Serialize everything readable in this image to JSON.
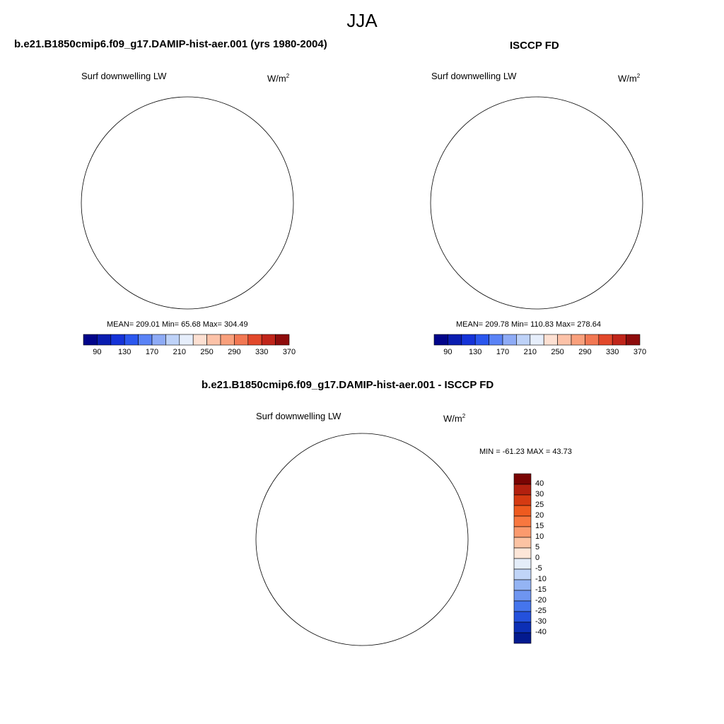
{
  "main_title": "JJA",
  "panels": {
    "model": {
      "title": "b.e21.B1850cmip6.f09_g17.DAMIP-hist-aer.001 (yrs 1980-2004)",
      "variable": "Surf downwelling LW",
      "units": "W/m",
      "units_sup": "2",
      "stats": "MEAN= 209.01  Min=  65.68  Max= 304.49"
    },
    "obs": {
      "title": "ISCCP FD",
      "variable": "Surf downwelling LW",
      "units": "W/m",
      "units_sup": "2",
      "stats": "MEAN= 209.78  Min= 110.83  Max= 278.64"
    },
    "diff": {
      "title": "b.e21.B1850cmip6.f09_g17.DAMIP-hist-aer.001 - ISCCP FD",
      "variable": "Surf downwelling LW",
      "units": "W/m",
      "units_sup": "2",
      "stats": "MIN = -61.23 MAX =  43.73"
    }
  },
  "chart_data": [
    {
      "type": "heatmap",
      "projection": "south polar stereographic",
      "title": "b.e21.B1850cmip6.f09_g17.DAMIP-hist-aer.001 (yrs 1980-2004)",
      "variable": "Surf downwelling LW",
      "units": "W/m2",
      "mean": 209.01,
      "min": 65.68,
      "max": 304.49,
      "colorbar_levels": [
        90,
        110,
        130,
        150,
        170,
        190,
        210,
        230,
        250,
        270,
        290,
        310,
        330,
        350,
        370
      ],
      "colorbar_tick_labels": [
        "90",
        "130",
        "170",
        "210",
        "250",
        "290",
        "330",
        "370"
      ],
      "colorbar_colors": [
        "#02058a",
        "#0a1db0",
        "#1533d8",
        "#2b57ee",
        "#5a83f6",
        "#8eabf6",
        "#bed2f8",
        "#e6eefb",
        "#fde0d2",
        "#fcc2a8",
        "#f9a07c",
        "#f27853",
        "#e2482b",
        "#c0251a",
        "#8e0c0c"
      ]
    },
    {
      "type": "heatmap",
      "projection": "south polar stereographic",
      "title": "ISCCP FD",
      "variable": "Surf downwelling LW",
      "units": "W/m2",
      "mean": 209.78,
      "min": 110.83,
      "max": 278.64,
      "colorbar_levels": [
        90,
        110,
        130,
        150,
        170,
        190,
        210,
        230,
        250,
        270,
        290,
        310,
        330,
        350,
        370
      ],
      "colorbar_tick_labels": [
        "90",
        "130",
        "170",
        "210",
        "250",
        "290",
        "330",
        "370"
      ],
      "colorbar_colors": [
        "#02058a",
        "#0a1db0",
        "#1533d8",
        "#2b57ee",
        "#5a83f6",
        "#8eabf6",
        "#bed2f8",
        "#e6eefb",
        "#fde0d2",
        "#fcc2a8",
        "#f9a07c",
        "#f27853",
        "#e2482b",
        "#c0251a",
        "#8e0c0c"
      ]
    },
    {
      "type": "heatmap",
      "projection": "south polar stereographic",
      "title": "b.e21.B1850cmip6.f09_g17.DAMIP-hist-aer.001 - ISCCP FD",
      "variable": "Surf downwelling LW",
      "units": "W/m2",
      "min": -61.23,
      "max": 43.73,
      "colorbar_tick_labels": [
        "40",
        "30",
        "25",
        "20",
        "15",
        "10",
        "5",
        "0",
        "-5",
        "-10",
        "-15",
        "-20",
        "-25",
        "-30",
        "-40"
      ],
      "colorbar_colors": [
        "#7a0403",
        "#b3200f",
        "#d53a12",
        "#ee5a1f",
        "#f8773f",
        "#fb9a6e",
        "#fcc3a3",
        "#fde6d8",
        "#e4edf9",
        "#c0d4f7",
        "#94b4f4",
        "#6e95f0",
        "#4575ec",
        "#2451dc",
        "#0c2fb5",
        "#031a8f"
      ]
    }
  ]
}
